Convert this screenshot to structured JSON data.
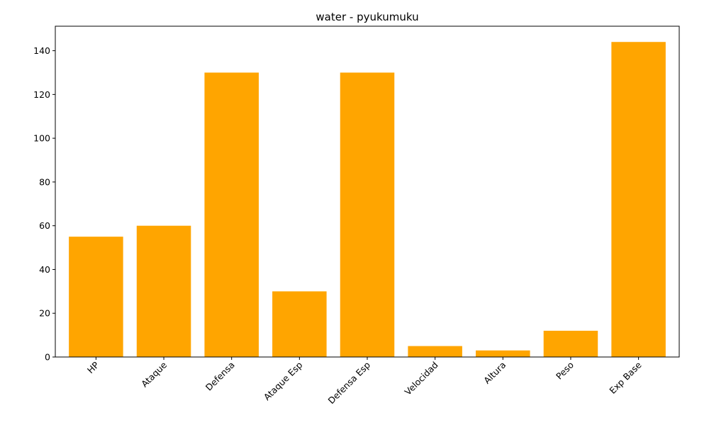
{
  "chart_data": {
    "type": "bar",
    "title": "water - pyukumuku",
    "xlabel": "",
    "ylabel": "",
    "categories": [
      "HP",
      "Ataque",
      "Defensa",
      "Ataque Esp",
      "Defensa Esp",
      "Velocidad",
      "Altura",
      "Peso",
      "Exp Base"
    ],
    "values": [
      55,
      60,
      130,
      30,
      130,
      5,
      3,
      12,
      144
    ],
    "ylim": [
      0,
      151.2
    ],
    "yticks": [
      0,
      20,
      40,
      60,
      80,
      100,
      120,
      140
    ],
    "bar_color": "#ffa500",
    "grid": false,
    "legend": "none",
    "xtick_rotation": 45
  }
}
